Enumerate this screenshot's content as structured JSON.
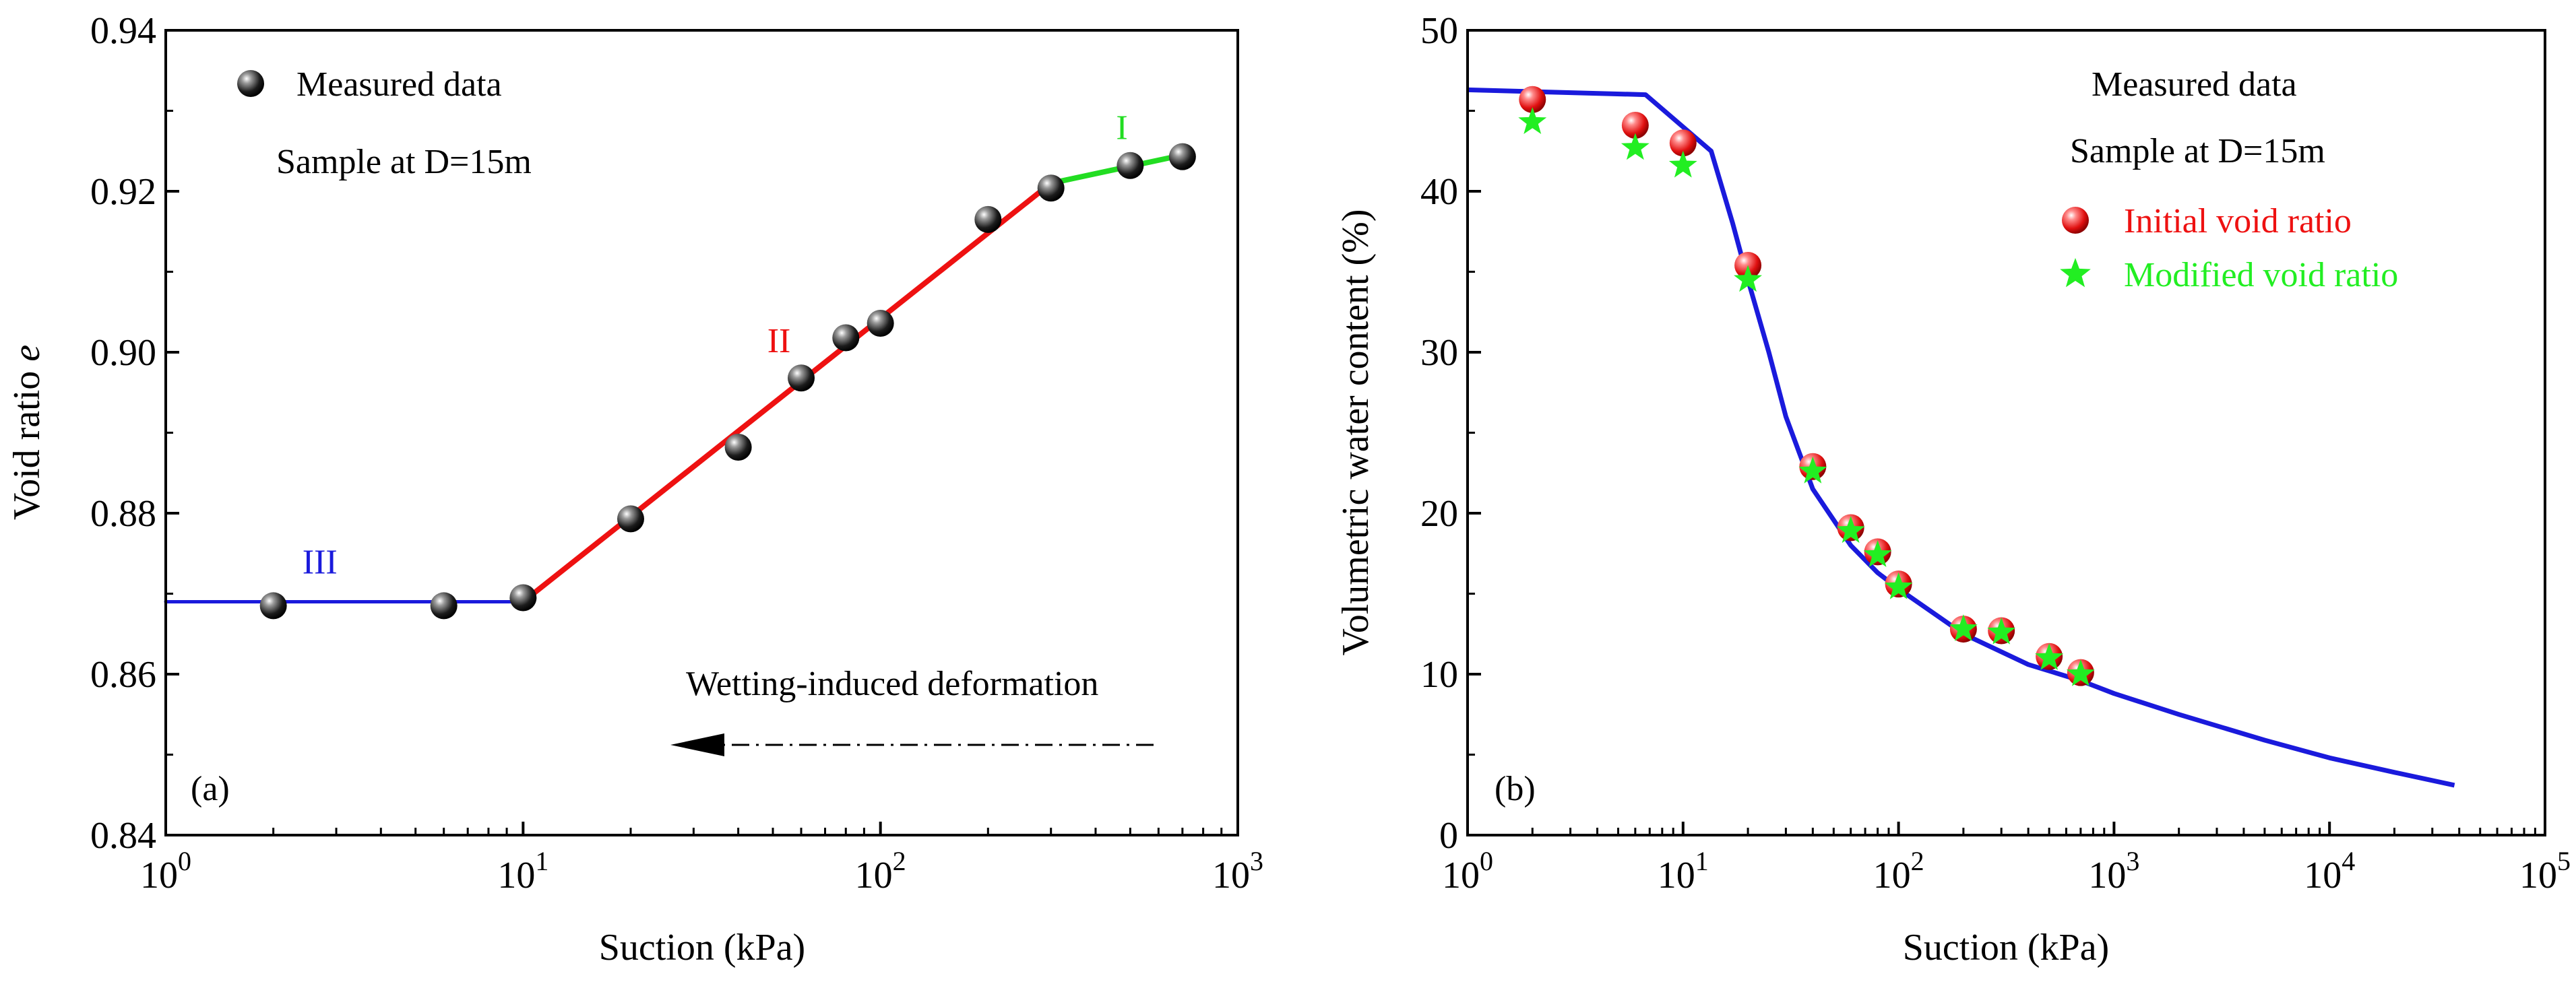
{
  "chart_data": [
    {
      "id": "a",
      "type": "scatter",
      "panel_label": "(a)",
      "xlabel": "Suction (kPa)",
      "ylabel_prefix": "Void ratio ",
      "ylabel_var": "e",
      "xscale": "log",
      "xlim": [
        1,
        1000
      ],
      "ylim": [
        0.84,
        0.94
      ],
      "x_ticks": [
        {
          "value": 1,
          "base": "10",
          "exp": "0"
        },
        {
          "value": 10,
          "base": "10",
          "exp": "1"
        },
        {
          "value": 100,
          "base": "10",
          "exp": "2"
        },
        {
          "value": 1000,
          "base": "10",
          "exp": "3"
        }
      ],
      "y_ticks": [
        "0.84",
        "0.86",
        "0.88",
        "0.90",
        "0.92",
        "0.94"
      ],
      "legend": {
        "marker_label": "Measured data",
        "sample_label": "Sample at D=15m"
      },
      "points": {
        "name": "Measured data",
        "color": "#111111",
        "x": [
          2,
          6,
          10,
          20,
          40,
          60,
          80,
          100,
          200,
          300,
          500,
          700
        ],
        "y": [
          0.8685,
          0.8685,
          0.8695,
          0.8793,
          0.8882,
          0.8968,
          0.9018,
          0.9036,
          0.9165,
          0.9204,
          0.9232,
          0.9243
        ]
      },
      "fit_lines": [
        {
          "label": "III",
          "color": "#1a1adc",
          "x": [
            1,
            10
          ],
          "y": [
            0.869,
            0.869
          ]
        },
        {
          "label": "II",
          "color": "#ee1111",
          "x": [
            10,
            300
          ],
          "y": [
            0.869,
            0.921
          ]
        },
        {
          "label": "I",
          "color": "#22dd22",
          "x": [
            300,
            700
          ],
          "y": [
            0.921,
            0.9245
          ]
        }
      ],
      "annotation": {
        "text": "Wetting-induced deformation",
        "arrow": "dash-dot arrow pointing left"
      }
    },
    {
      "id": "b",
      "type": "scatter",
      "panel_label": "(b)",
      "xlabel": "Suction (kPa)",
      "ylabel": "Volumetric water content (%)",
      "xscale": "log",
      "xlim": [
        1,
        100000
      ],
      "ylim": [
        0,
        50
      ],
      "x_ticks": [
        {
          "value": 1,
          "base": "10",
          "exp": "0"
        },
        {
          "value": 10,
          "base": "10",
          "exp": "1"
        },
        {
          "value": 100,
          "base": "10",
          "exp": "2"
        },
        {
          "value": 1000,
          "base": "10",
          "exp": "3"
        },
        {
          "value": 10000,
          "base": "10",
          "exp": "4"
        },
        {
          "value": 100000,
          "base": "10",
          "exp": "5"
        }
      ],
      "y_ticks": [
        "0",
        "10",
        "20",
        "30",
        "40",
        "50"
      ],
      "legend": {
        "title": "Measured data",
        "sample_label": "Sample at D=15m"
      },
      "series": [
        {
          "name": "Initial void ratio",
          "color": "#ee1111",
          "marker": "sphere",
          "x": [
            2,
            6,
            10,
            20,
            40,
            60,
            80,
            100,
            200,
            300,
            500,
            700
          ],
          "y": [
            45.7,
            44.1,
            43.0,
            35.4,
            22.9,
            19.1,
            17.6,
            15.6,
            12.8,
            12.7,
            11.1,
            10.1
          ]
        },
        {
          "name": "Modified void ratio",
          "color": "#22ee22",
          "marker": "star",
          "x": [
            2,
            6,
            10,
            20,
            40,
            60,
            80,
            100,
            200,
            300,
            500,
            700
          ],
          "y": [
            44.3,
            42.7,
            41.6,
            34.5,
            22.6,
            18.9,
            17.4,
            15.4,
            12.8,
            12.6,
            11.0,
            10.0
          ]
        }
      ],
      "fit_curve": {
        "color": "#1a1adc",
        "x": [
          1,
          6.7,
          13.5,
          17,
          20,
          25,
          30,
          40,
          60,
          80,
          100,
          200,
          400,
          700,
          1000,
          2000,
          5000,
          10000,
          20000,
          38000
        ],
        "y": [
          46.3,
          46.0,
          42.5,
          38.0,
          34.5,
          30.0,
          26.0,
          21.5,
          18.0,
          16.3,
          15.3,
          12.5,
          10.6,
          9.6,
          8.8,
          7.5,
          5.9,
          4.8,
          3.9,
          3.1
        ]
      }
    }
  ]
}
